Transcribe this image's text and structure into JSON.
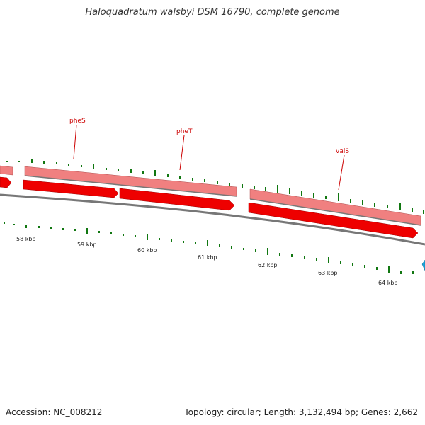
{
  "header": {
    "title": "Haloquadratum walsbyi DSM 16790, complete genome"
  },
  "footer": {
    "accession": "Accession: NC_008212",
    "summary": "Topology: circular; Length: 3,132,494 bp; Genes: 2,662"
  },
  "genes": [
    {
      "name": "pheS",
      "label_visible": true
    },
    {
      "name": "pheT",
      "label_visible": true
    },
    {
      "name": "valS",
      "label_visible": true
    }
  ],
  "scale": {
    "unit": "kbp",
    "ticks": [
      "58 kbp",
      "59 kbp",
      "60 kbp",
      "61 kbp",
      "62 kbp",
      "63 kbp",
      "64 kbp"
    ]
  },
  "colors": {
    "gene_arrow": "#ee0000",
    "gene_band": "#f08080",
    "backbone": "#777777",
    "gc_ticks": "#117711",
    "other_feature": "#1aa7e0"
  }
}
